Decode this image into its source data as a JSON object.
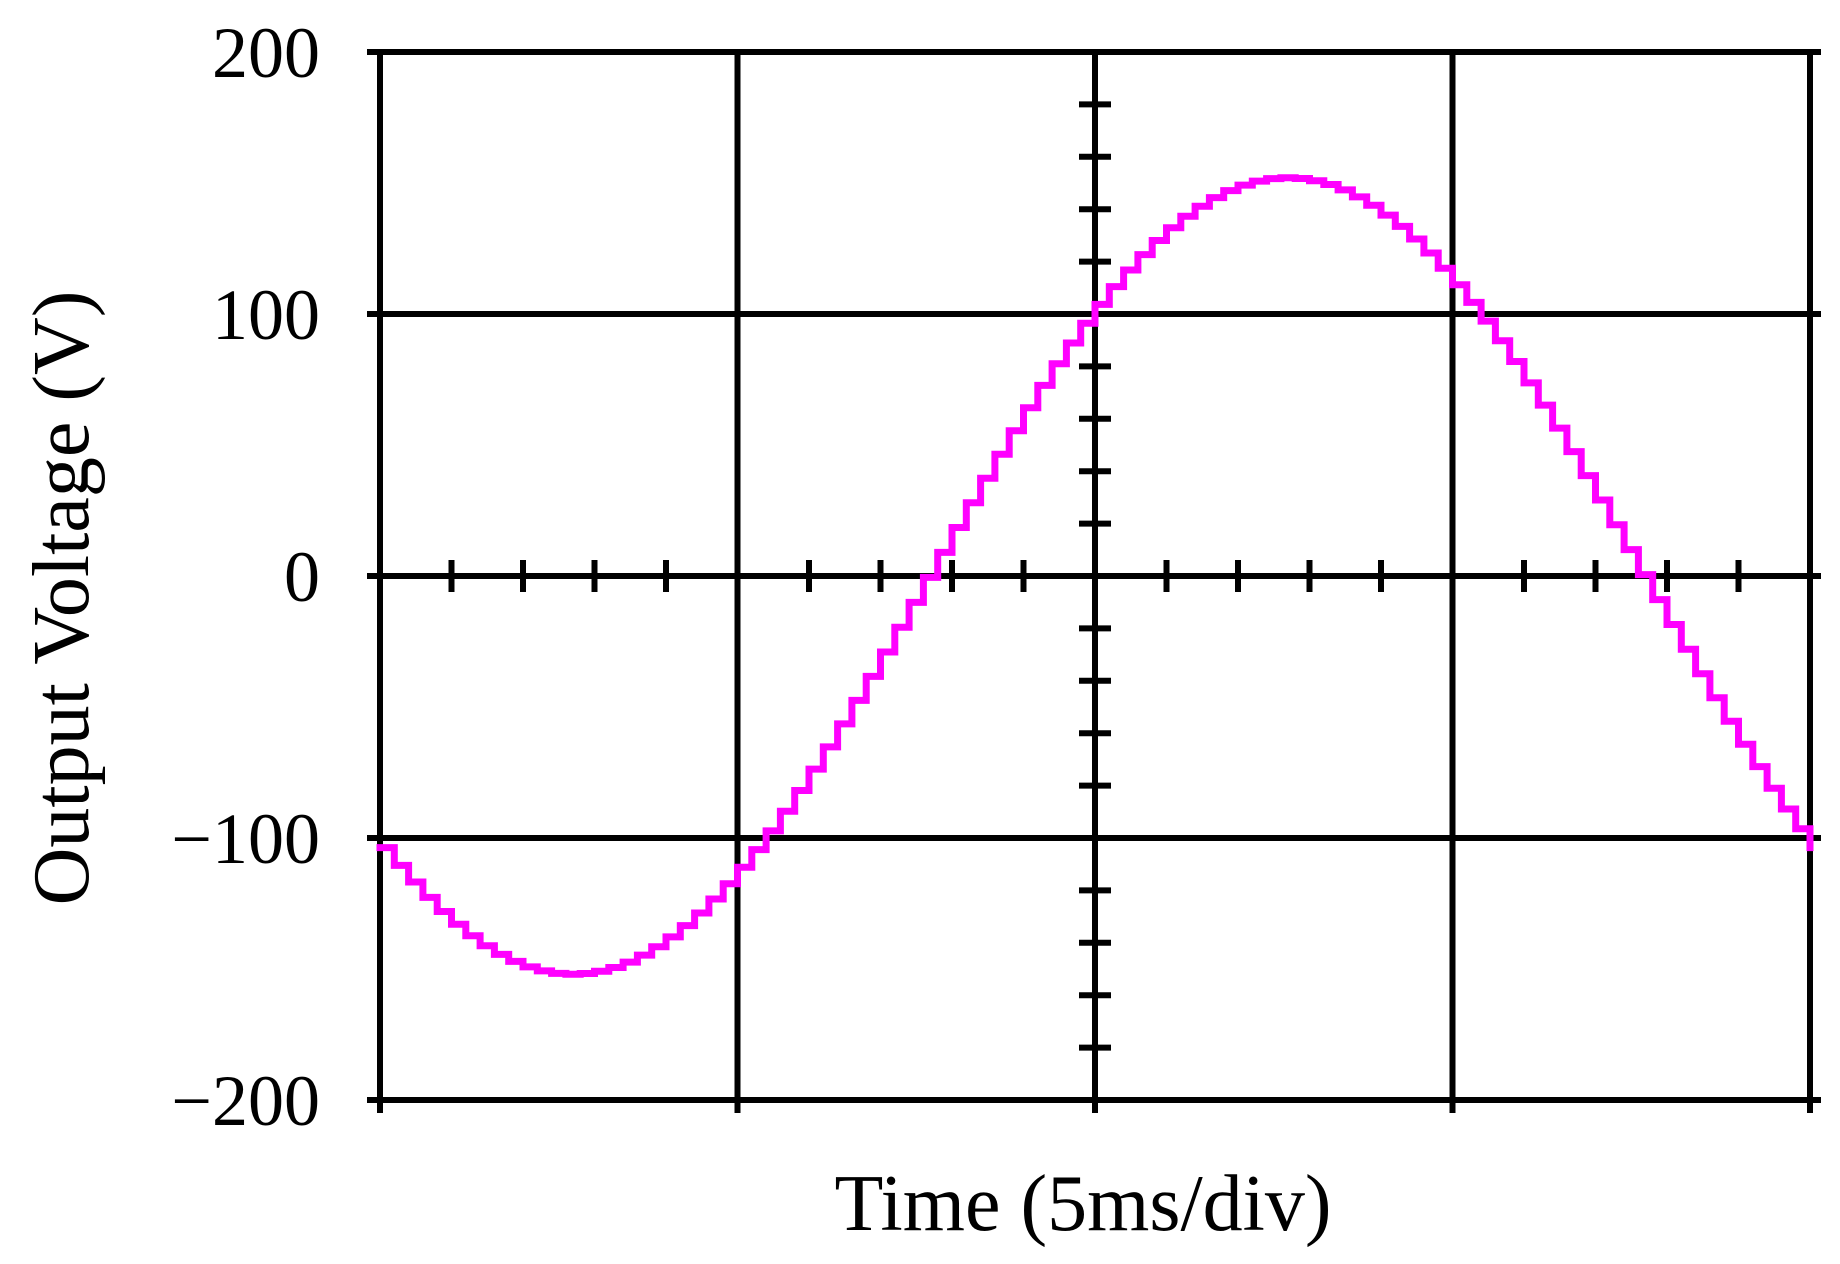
{
  "chart_data": {
    "type": "line",
    "title": "",
    "xlabel": "Time (5ms/div)",
    "ylabel": "Output Voltage (V)",
    "xlim": [
      0,
      20
    ],
    "ylim": [
      -200,
      200
    ],
    "x_unit": "ms",
    "x_major_division": 5,
    "y_major_division": 100,
    "minor_ticks_per_division": 5,
    "yticks": [
      {
        "value": 200,
        "label": "200"
      },
      {
        "value": 100,
        "label": "100"
      },
      {
        "value": 0,
        "label": "0"
      },
      {
        "value": -100,
        "label": "−100"
      },
      {
        "value": -200,
        "label": "−200"
      }
    ],
    "grid": true,
    "legend": "none",
    "series": [
      {
        "color": "#ff00ff",
        "waveform": "sine",
        "amplitude": 152,
        "period": 20,
        "phase_deg": 223,
        "step_ms": 0.2
      }
    ]
  }
}
